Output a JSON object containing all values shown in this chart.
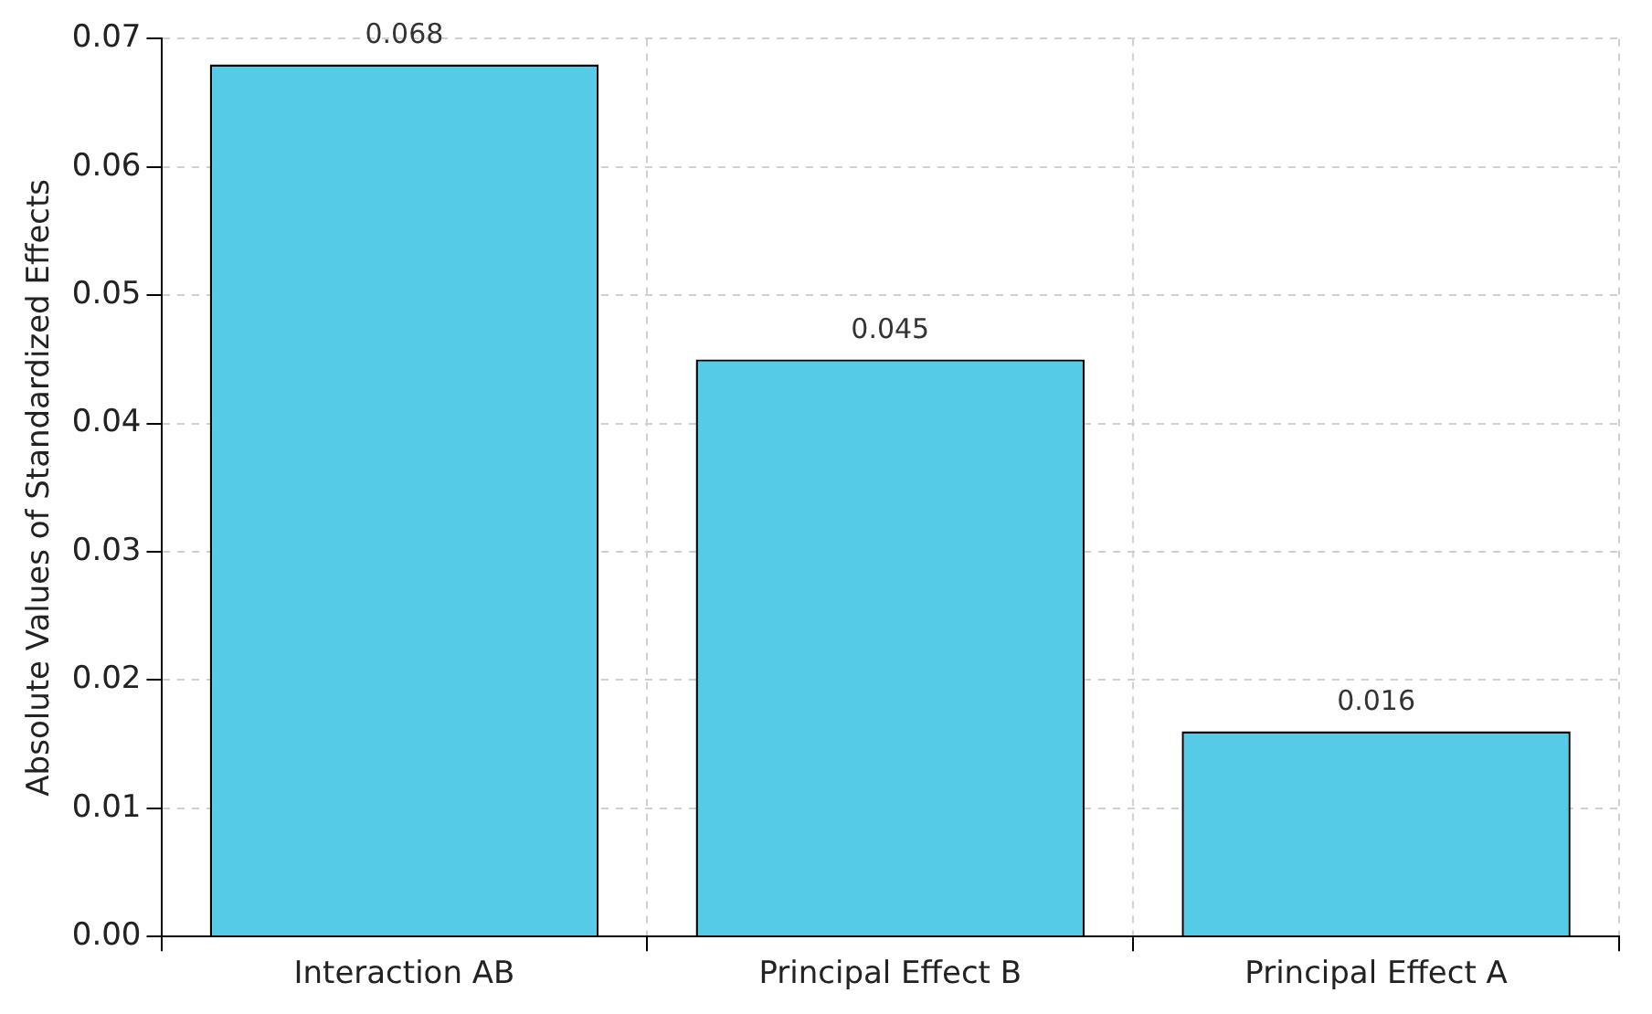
{
  "chart_data": {
    "type": "bar",
    "ylabel": "Absolute Values of Standardized Effects",
    "categories": [
      "Interaction AB",
      "Principal Effect B",
      "Principal Effect A"
    ],
    "values": [
      0.068,
      0.045,
      0.016
    ],
    "color": "#56cbe8",
    "ylim": [
      0,
      0.07
    ],
    "yticks": [
      {
        "value": 0,
        "label": "0.00"
      },
      0.01,
      0.02,
      0.03,
      0.04,
      0.05,
      0.06,
      0.07
    ],
    "grid": true,
    "data_labels": true
  }
}
